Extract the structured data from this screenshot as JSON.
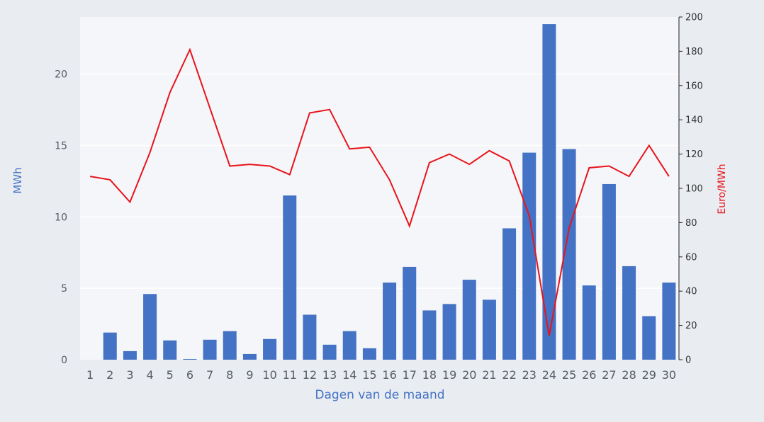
{
  "colors": {
    "page_background": "#e9ecf1",
    "plot_background": "#f5f6f9",
    "gridline": "#ffffff",
    "bar": "#4472c4",
    "line": "#e8141b",
    "left_axis_title": "#4472c4",
    "right_axis_title": "#e8141b",
    "xlabel": "#4472c4"
  },
  "chart_data": {
    "type": "bar",
    "categories": [
      "1",
      "2",
      "3",
      "4",
      "5",
      "6",
      "7",
      "8",
      "9",
      "10",
      "11",
      "12",
      "13",
      "14",
      "15",
      "16",
      "17",
      "18",
      "19",
      "20",
      "21",
      "22",
      "23",
      "24",
      "25",
      "26",
      "27",
      "28",
      "29",
      "30"
    ],
    "series": [
      {
        "type": "bar",
        "axis": "left",
        "values": [
          0.0,
          1.9,
          0.6,
          4.6,
          1.35,
          0.05,
          1.4,
          2.0,
          0.4,
          1.45,
          11.5,
          3.15,
          1.05,
          2.0,
          0.8,
          5.4,
          6.5,
          3.45,
          3.9,
          5.6,
          4.2,
          9.2,
          14.5,
          23.5,
          14.75,
          5.2,
          12.3,
          6.55,
          3.05,
          5.4
        ]
      },
      {
        "type": "line",
        "axis": "right",
        "values": [
          107,
          105,
          92,
          121,
          156,
          181,
          147,
          113,
          114,
          113,
          108,
          144,
          146,
          123,
          124,
          105,
          78,
          115,
          120,
          114,
          122,
          116,
          84,
          14,
          77,
          112,
          113,
          107,
          125,
          107
        ]
      }
    ],
    "xlabel": "Dagen van de maand",
    "ylabel": "MWh",
    "y2label": "Euro/MWh",
    "ylim": [
      0,
      24
    ],
    "y2lim": [
      0,
      200
    ],
    "yticks": [
      0,
      5,
      10,
      15,
      20
    ],
    "y2ticks": [
      0,
      20,
      40,
      60,
      80,
      100,
      120,
      140,
      160,
      180,
      200
    ],
    "grid": true,
    "legend": "none"
  }
}
